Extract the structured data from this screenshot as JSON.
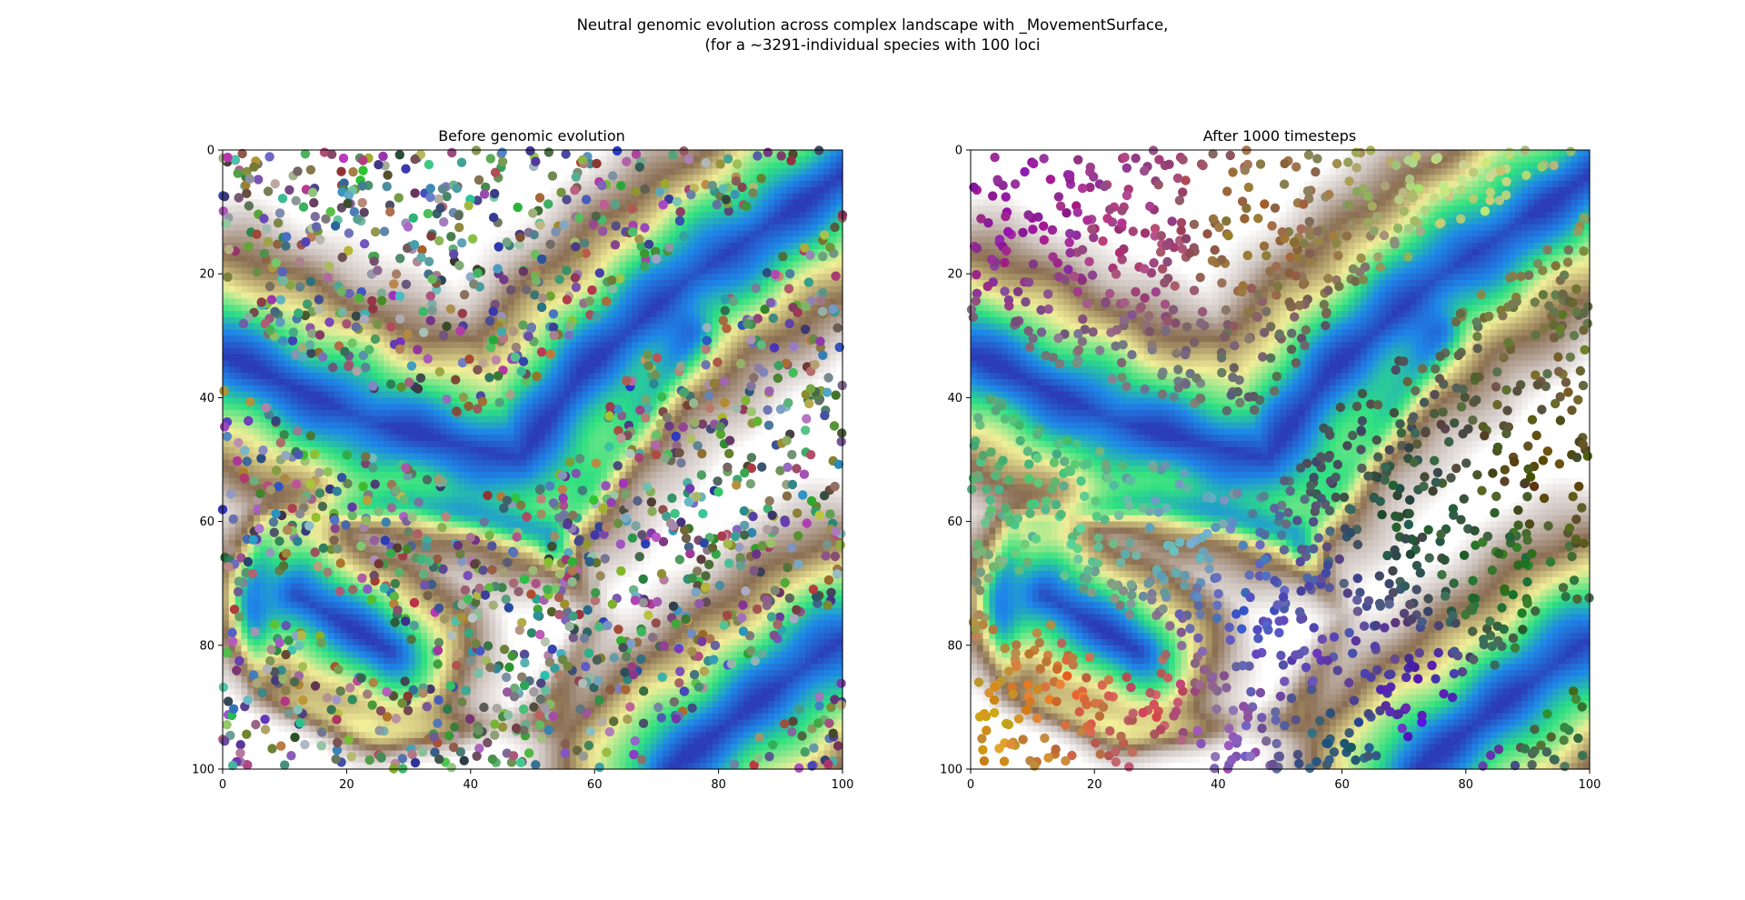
{
  "suptitle": {
    "line1": "Neutral genomic evolution across complex landscape with _MovementSurface,",
    "line2": "(for a ~3291-individual species with 100 loci"
  },
  "chart_data": [
    {
      "type": "heatmap",
      "title": "Before genomic evolution",
      "xlabel": "",
      "ylabel": "",
      "xlim": [
        0,
        100
      ],
      "ylim": [
        100,
        0
      ],
      "xticks": [
        "0",
        "20",
        "40",
        "60",
        "80",
        "100"
      ],
      "yticks": [
        "0",
        "20",
        "40",
        "60",
        "80",
        "100"
      ],
      "overlay": "scatter",
      "point_coloring": "random per individual (unstructured genotype colors)"
    },
    {
      "type": "heatmap",
      "title": "After 1000 timesteps",
      "xlabel": "",
      "ylabel": "",
      "xlim": [
        0,
        100
      ],
      "ylim": [
        100,
        0
      ],
      "xticks": [
        "0",
        "20",
        "40",
        "60",
        "80",
        "100"
      ],
      "yticks": [
        "0",
        "20",
        "40",
        "60",
        "80",
        "100"
      ],
      "overlay": "scatter",
      "point_coloring": "spatially structured genotype colors"
    }
  ],
  "colors": {
    "water_deep": "#2b3db8",
    "water": "#1e88e8",
    "grass": "#2ee080",
    "sand": "#f2ee98",
    "soil": "#8a6e52",
    "snow": "#ffffff"
  }
}
